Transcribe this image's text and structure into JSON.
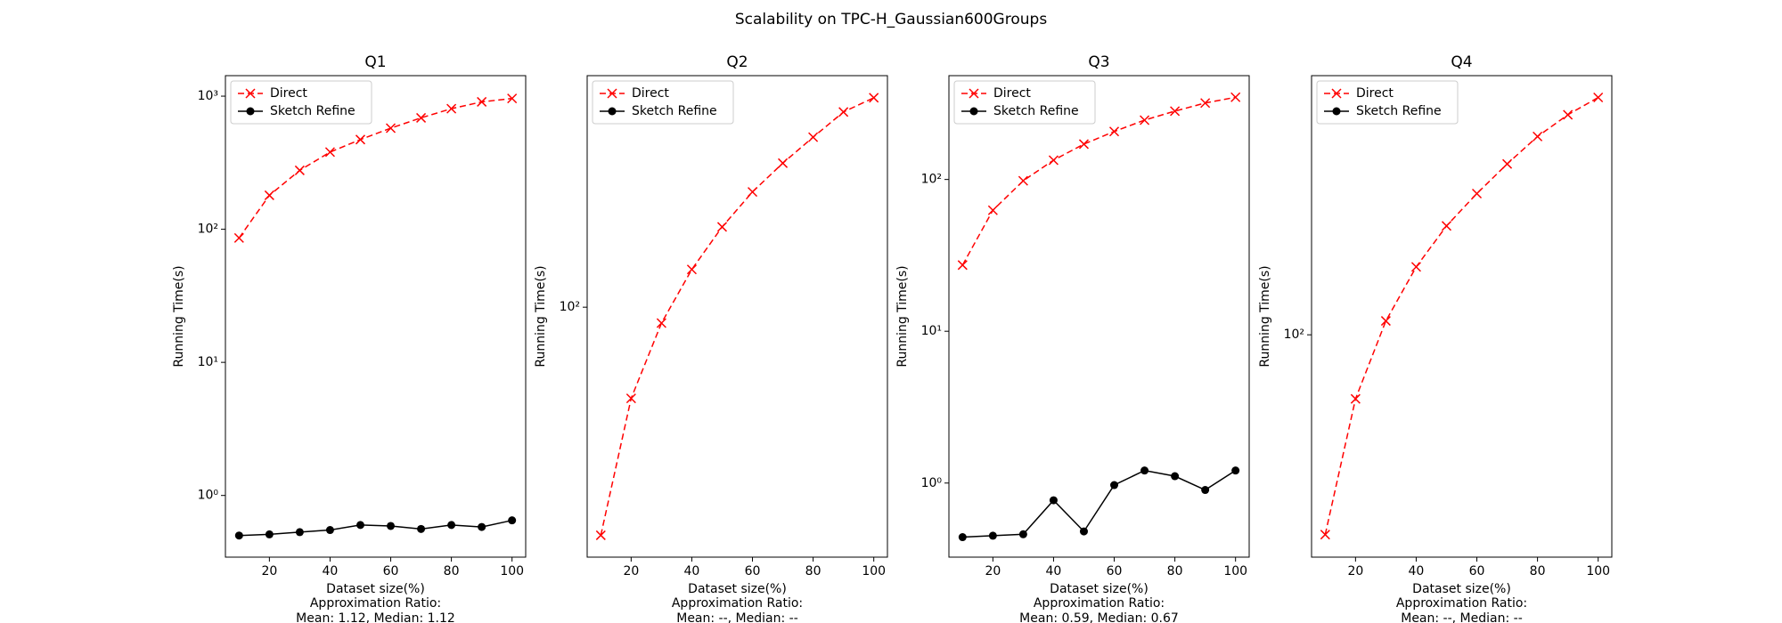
{
  "title": "Scalability on TPC-H_Gaussian600Groups",
  "chart_data": [
    {
      "type": "line",
      "title": "Q1",
      "xlabel": "Dataset size(%)",
      "notes": [
        "Approximation Ratio:",
        "Mean: 1.12, Median: 1.12"
      ],
      "ylabel": "Running Time(s)",
      "x": [
        10,
        20,
        30,
        40,
        50,
        60,
        70,
        80,
        90,
        100
      ],
      "xlim": [
        5.5,
        104.5
      ],
      "xticks": [
        20,
        40,
        60,
        80,
        100
      ],
      "log_y": true,
      "ylim": [
        0.344,
        1426
      ],
      "yticks": [
        {
          "value": 1,
          "label": "10⁰"
        },
        {
          "value": 10,
          "label": "10¹"
        },
        {
          "value": 100,
          "label": "10²"
        },
        {
          "value": 1000,
          "label": "10³"
        }
      ],
      "legend": "upper left",
      "series": [
        {
          "name": "Direct",
          "color": "#ff0000",
          "marker": "x",
          "linestyle": "dashed",
          "values": [
            86,
            180,
            277,
            380,
            472,
            575,
            687,
            805,
            906,
            961
          ]
        },
        {
          "name": "Sketch Refine",
          "color": "#000000",
          "marker": "o",
          "linestyle": "solid",
          "values": [
            0.5,
            0.51,
            0.53,
            0.55,
            0.6,
            0.59,
            0.56,
            0.6,
            0.58,
            0.65
          ]
        }
      ]
    },
    {
      "type": "line",
      "title": "Q2",
      "xlabel": "Dataset size(%)",
      "notes": [
        "Approximation Ratio:",
        "Mean: --, Median: --"
      ],
      "ylabel": "Running Time(s)",
      "x": [
        10,
        20,
        30,
        40,
        50,
        60,
        70,
        80,
        90,
        100
      ],
      "xlim": [
        5.5,
        104.5
      ],
      "xticks": [
        20,
        40,
        60,
        80,
        100
      ],
      "log_y": true,
      "ylim": [
        28.3,
        322
      ],
      "yticks": [
        {
          "value": 100,
          "label": "10²"
        }
      ],
      "legend": "upper left",
      "series": [
        {
          "name": "Direct",
          "color": "#ff0000",
          "marker": "x",
          "linestyle": "dashed",
          "values": [
            31.6,
            63.1,
            92.3,
            121,
            150,
            179,
            207,
            236,
            268,
            288
          ]
        },
        {
          "name": "Sketch Refine",
          "color": "#000000",
          "marker": "o",
          "linestyle": "solid",
          "values": [
            null,
            null,
            null,
            null,
            null,
            null,
            null,
            null,
            null,
            null
          ]
        }
      ]
    },
    {
      "type": "line",
      "title": "Q3",
      "xlabel": "Dataset size(%)",
      "notes": [
        "Approximation Ratio:",
        "Mean: 0.59, Median: 0.67"
      ],
      "ylabel": "Running Time(s)",
      "x": [
        10,
        20,
        30,
        40,
        50,
        60,
        70,
        80,
        90,
        100
      ],
      "xlim": [
        5.5,
        104.5
      ],
      "xticks": [
        20,
        40,
        60,
        80,
        100
      ],
      "log_y": true,
      "ylim": [
        0.325,
        483
      ],
      "yticks": [
        {
          "value": 1,
          "label": "10⁰"
        },
        {
          "value": 10,
          "label": "10¹"
        },
        {
          "value": 100,
          "label": "10²"
        }
      ],
      "legend": "upper left",
      "series": [
        {
          "name": "Direct",
          "color": "#ff0000",
          "marker": "x",
          "linestyle": "dashed",
          "values": [
            27.3,
            62.7,
            98,
            134,
            171,
            207,
            246,
            282,
            319,
            348
          ]
        },
        {
          "name": "Sketch Refine",
          "color": "#000000",
          "marker": "o",
          "linestyle": "solid",
          "values": [
            0.44,
            0.45,
            0.46,
            0.77,
            0.48,
            0.97,
            1.21,
            1.11,
            0.9,
            1.21
          ]
        }
      ]
    },
    {
      "type": "line",
      "title": "Q4",
      "xlabel": "Dataset size(%)",
      "notes": [
        "Approximation Ratio:",
        "Mean: --, Median: --"
      ],
      "ylabel": "Running Time(s)",
      "x": [
        10,
        20,
        30,
        40,
        50,
        60,
        70,
        80,
        90,
        100
      ],
      "xlim": [
        5.5,
        104.5
      ],
      "xticks": [
        20,
        40,
        60,
        80,
        100
      ],
      "log_y": true,
      "ylim": [
        39.3,
        297
      ],
      "yticks": [
        {
          "value": 100,
          "label": "10²"
        }
      ],
      "legend": "upper left",
      "series": [
        {
          "name": "Direct",
          "color": "#ff0000",
          "marker": "x",
          "linestyle": "dashed",
          "values": [
            43.2,
            76.4,
            106,
            133,
            158,
            181,
            205,
            230,
            252,
            271
          ]
        },
        {
          "name": "Sketch Refine",
          "color": "#000000",
          "marker": "o",
          "linestyle": "solid",
          "values": [
            null,
            null,
            null,
            null,
            null,
            null,
            null,
            null,
            null,
            null
          ]
        }
      ]
    }
  ]
}
